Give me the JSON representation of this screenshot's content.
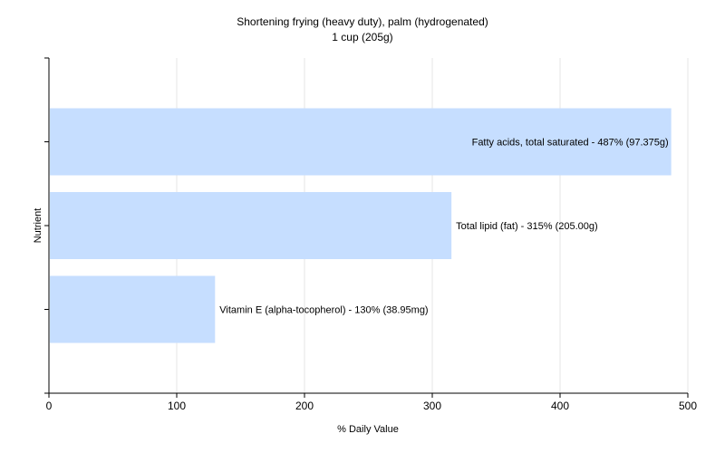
{
  "chart_data": {
    "type": "bar",
    "orientation": "horizontal",
    "title": "Shortening frying (heavy duty), palm (hydrogenated)",
    "subtitle": "1 cup (205g)",
    "xlabel": "% Daily Value",
    "ylabel": "Nutrient",
    "xlim": [
      0,
      500
    ],
    "xticks": [
      0,
      100,
      200,
      300,
      400,
      500
    ],
    "grid": true,
    "bar_color": "#c6deff",
    "bars": [
      {
        "nutrient": "Fatty acids, total saturated",
        "value": 487,
        "label": "Fatty acids, total saturated - 487% (97.375g)"
      },
      {
        "nutrient": "Total lipid (fat)",
        "value": 315,
        "label": "Total lipid (fat) - 315% (205.00g)"
      },
      {
        "nutrient": "Vitamin E (alpha-tocopherol)",
        "value": 130,
        "label": "Vitamin E (alpha-tocopherol) - 130% (38.95mg)"
      }
    ]
  }
}
